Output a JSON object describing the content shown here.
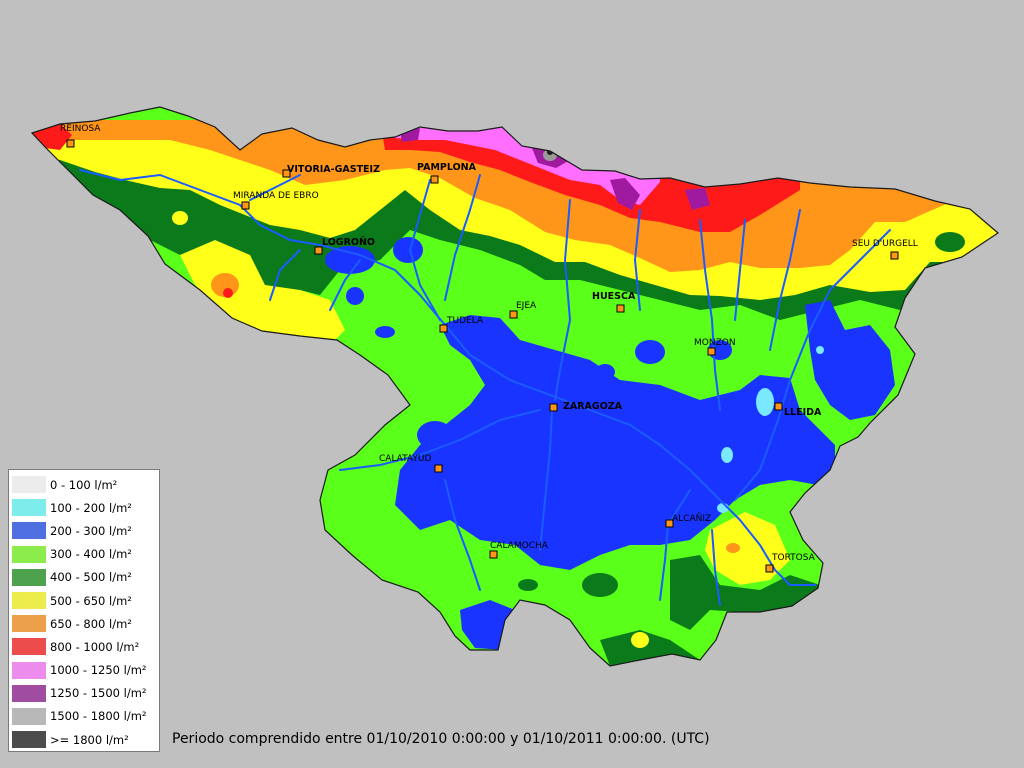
{
  "legend": {
    "items": [
      {
        "label": "0 - 100 l/m²",
        "color": "#ececec"
      },
      {
        "label": "100 - 200 l/m²",
        "color": "#7fecec"
      },
      {
        "label": "200 - 300 l/m²",
        "color": "#4f6fe0"
      },
      {
        "label": "300 - 400 l/m²",
        "color": "#8cec4c"
      },
      {
        "label": "400 - 500 l/m²",
        "color": "#4ea24e"
      },
      {
        "label": "500 - 650 l/m²",
        "color": "#ecec4c"
      },
      {
        "label": "650 - 800 l/m²",
        "color": "#eca04c"
      },
      {
        "label": "800 - 1000 l/m²",
        "color": "#ec4c4c"
      },
      {
        "label": "1000 - 1250 l/m²",
        "color": "#ec8cec"
      },
      {
        "label": "1250 - 1500 l/m²",
        "color": "#a04ca0"
      },
      {
        "label": "1500 - 1800 l/m²",
        "color": "#b8b8b8"
      },
      {
        "label": ">= 1800 l/m²",
        "color": "#4c4c4c"
      }
    ]
  },
  "map_colors": {
    "light_green": "#5aff1a",
    "dark_green": "#0a7a1a",
    "blue": "#1a34ff",
    "yellow": "#ffff1a",
    "orange": "#ff961a",
    "red": "#ff1a1a",
    "pink": "#ff6eff",
    "purple": "#a01aa0",
    "cyan": "#7ae8ff",
    "river": "#1a5cff"
  },
  "cities": [
    {
      "name": "REINOSA",
      "bold": false
    },
    {
      "name": "VITORIA-GASTEIZ",
      "bold": true
    },
    {
      "name": "PAMPLONA",
      "bold": true
    },
    {
      "name": "MIRANDA DE EBRO",
      "bold": false
    },
    {
      "name": "LOGROÑO",
      "bold": true
    },
    {
      "name": "SEU D'URGELL",
      "bold": false
    },
    {
      "name": "EJEA",
      "bold": false
    },
    {
      "name": "HUESCA",
      "bold": true
    },
    {
      "name": "TUDELA",
      "bold": false
    },
    {
      "name": "MONZON",
      "bold": false
    },
    {
      "name": "ZARAGOZA",
      "bold": true
    },
    {
      "name": "LLEIDA",
      "bold": true
    },
    {
      "name": "CALATAYUD",
      "bold": false
    },
    {
      "name": "ALCAÑIZ",
      "bold": false
    },
    {
      "name": "CALAMOCHA",
      "bold": false
    },
    {
      "name": "TORTOSA",
      "bold": false
    }
  ],
  "period_text": "Periodo comprendido entre 01/10/2010 0:00:00 y 01/10/2011 0:00:00. (UTC)"
}
